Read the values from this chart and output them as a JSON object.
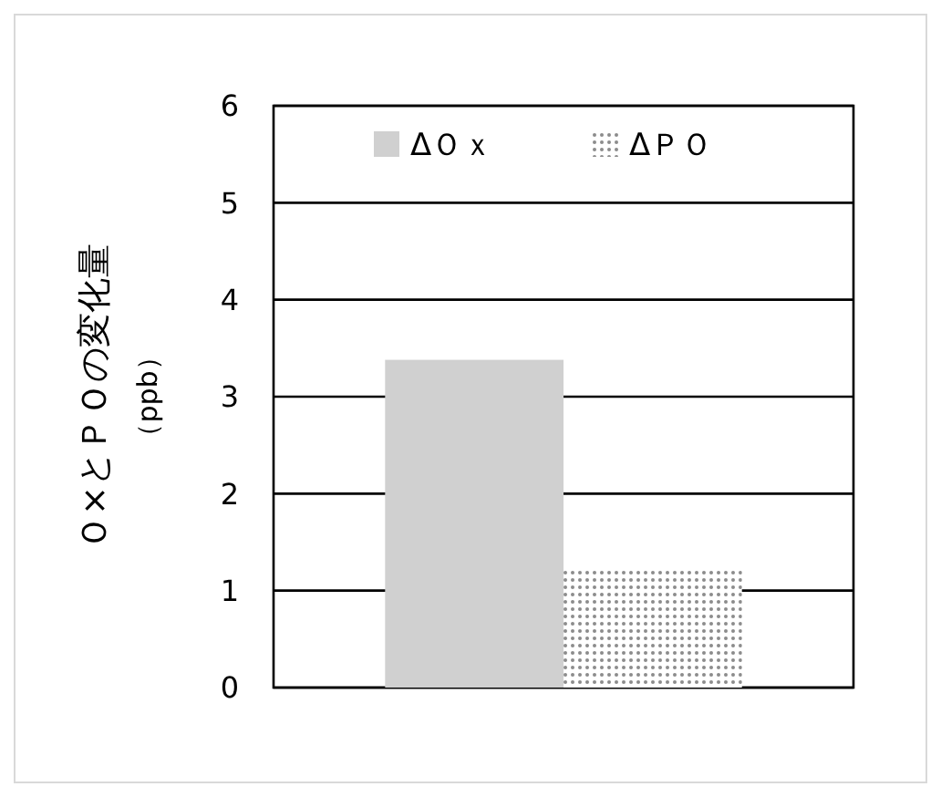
{
  "chart_data": {
    "type": "bar",
    "ylabel": "Ｏ×とＰＯの変化量（ppb）",
    "categories": [
      null
    ],
    "series": [
      {
        "name": "ΔＯｘ",
        "color": "#d0d0d0",
        "values": [
          3.38
        ]
      },
      {
        "name": "ΔＰＯ",
        "color": "#8c8c8c",
        "values": [
          1.23
        ]
      }
    ],
    "ylim": [
      0,
      6
    ],
    "yticks": [
      0,
      1,
      2,
      3,
      4,
      5,
      6
    ],
    "grid": "y",
    "legend": "top"
  }
}
